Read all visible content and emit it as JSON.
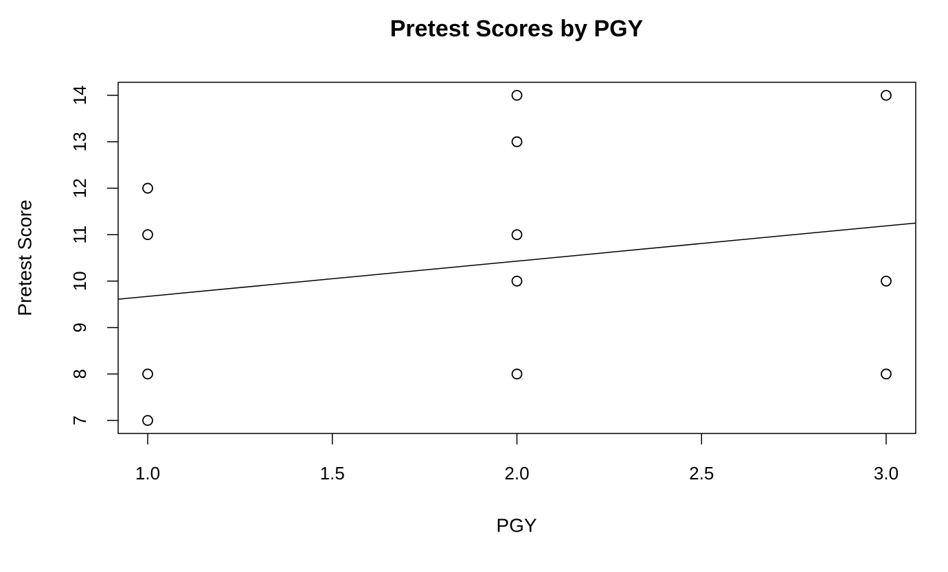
{
  "chart_data": {
    "type": "scatter",
    "title": "Pretest Scores by PGY",
    "x_label": "PGY",
    "y_label": "Pretest Score",
    "x": [
      1,
      1,
      1,
      1,
      2,
      2,
      2,
      2,
      2,
      3,
      3,
      3
    ],
    "y": [
      12,
      11,
      8,
      7,
      14,
      13,
      11,
      10,
      8,
      14,
      10,
      8
    ],
    "color": "#000000",
    "fit_line": {
      "x": [
        0.92,
        3.08
      ],
      "y": [
        9.61,
        11.25
      ]
    },
    "xlim": [
      0.92,
      3.08
    ],
    "ylim": [
      6.72,
      14.28
    ],
    "xticks": [
      {
        "value": 1,
        "label": "1.0"
      },
      1.5,
      {
        "value": 2,
        "label": "2.0"
      },
      2.5,
      {
        "value": 3,
        "label": "3.0"
      }
    ],
    "yticks": [
      7,
      8,
      9,
      10,
      11,
      12,
      13,
      14
    ]
  }
}
